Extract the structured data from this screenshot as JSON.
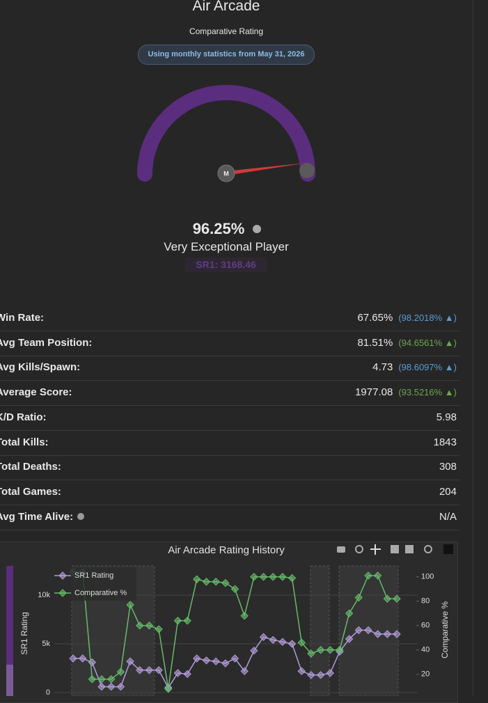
{
  "header": {
    "title": "Air Arcade",
    "subtitle": "Comparative Rating",
    "badge": "Using monthly statistics from May 31, 2026"
  },
  "gauge": {
    "marker": "M",
    "value_label": "96.25%",
    "rank": "Very Exceptional Player",
    "sr": "SR1: 3168.46"
  },
  "stats": [
    {
      "label": "Win Rate:",
      "value": "67.65%",
      "change": "(98.2018% ▲)",
      "change_color": "#5b9bd5"
    },
    {
      "label": "Avg Team Position:",
      "value": "81.51%",
      "change": "(94.6561% ▲)",
      "change_color": "#6aa84f"
    },
    {
      "label": "Avg Kills/Spawn:",
      "value": "4.73",
      "change": "(98.6097% ▲)",
      "change_color": "#5b9bd5"
    },
    {
      "label": "Average Score:",
      "value": "1977.08",
      "change": "(93.5216% ▲)",
      "change_color": "#6aa84f"
    },
    {
      "label": "K/D Ratio:",
      "value": "5.98"
    },
    {
      "label": "Total Kills:",
      "value": "1843"
    },
    {
      "label": "Total Deaths:",
      "value": "308"
    },
    {
      "label": "Total Games:",
      "value": "204"
    },
    {
      "label": "Avg Time Alive:",
      "value": "N/A",
      "info": true
    }
  ],
  "chart_data": {
    "type": "line",
    "title": "Air Arcade Rating History",
    "y_label": "SR1 Rating",
    "y2_label": "Comparative %",
    "categories": [
      null,
      null,
      null,
      null,
      null,
      null,
      null,
      null,
      null,
      null,
      null,
      null,
      null,
      null,
      null,
      null,
      null,
      null,
      null,
      null,
      null,
      null,
      null,
      null,
      null,
      null,
      null,
      null,
      null,
      null,
      null,
      null,
      null,
      null,
      null
    ],
    "ylim": [
      0,
      13000
    ],
    "yticks": [
      0,
      {
        "value": 5000,
        "label": "5k"
      },
      {
        "value": 10000,
        "label": "10k"
      }
    ],
    "y2lim": [
      5,
      109
    ],
    "y2ticks": [
      20,
      40,
      60,
      80,
      100
    ],
    "grid": true,
    "legend": "top-left",
    "series": [
      {
        "name": "SR1 Rating",
        "color": "#b39ddb",
        "values": [
          3500,
          3500,
          3100,
          600,
          600,
          600,
          3200,
          2300,
          2300,
          2300,
          500,
          2000,
          1900,
          3500,
          3300,
          3200,
          3000,
          3500,
          2200,
          4300,
          5700,
          5400,
          5200,
          5000,
          2200,
          1800,
          1800,
          2000,
          4200,
          5500,
          6400,
          6400,
          6000,
          6000,
          6000
        ]
      },
      {
        "name": "Comparative %",
        "color": "#66bb6a",
        "axis": "y2",
        "values": [
          104,
          104,
          16,
          16,
          16,
          22,
          77,
          60,
          60,
          57,
          8,
          64,
          64,
          98,
          96,
          96,
          95,
          90,
          68,
          100,
          100,
          100,
          100,
          99,
          46,
          37,
          40,
          40,
          40,
          70,
          83,
          101,
          101,
          82,
          82
        ]
      }
    ]
  }
}
